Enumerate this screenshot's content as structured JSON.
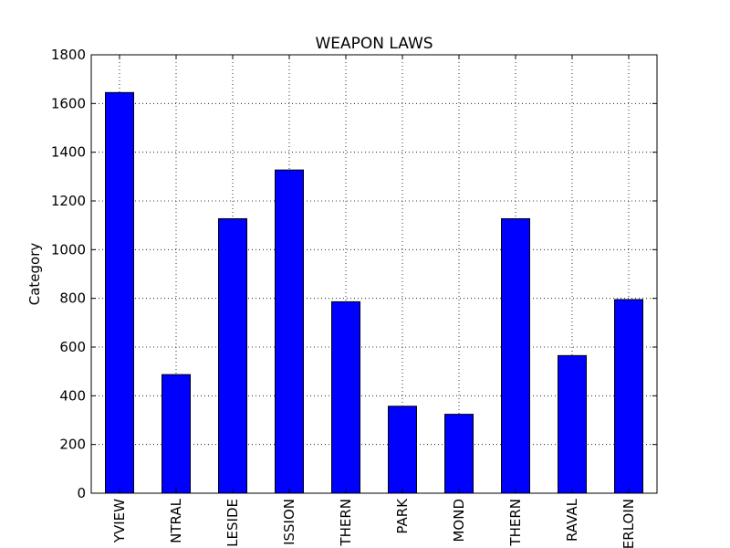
{
  "chart_data": {
    "type": "bar",
    "title": "WEAPON LAWS",
    "xlabel": "",
    "ylabel": "Category",
    "categories": [
      "BAYVIEW",
      "CENTRAL",
      "INGLESIDE",
      "MISSION",
      "NORTHERN",
      "PARK",
      "RICHMOND",
      "SOUTHERN",
      "TARAVAL",
      "TENDERLOIN"
    ],
    "tick_labels": [
      "YVIEW",
      "NTRAL",
      "LESIDE",
      "ISSION",
      "THERN",
      "PARK",
      "MOND",
      "THERN",
      "RAVAL",
      "ERLOIN"
    ],
    "values": [
      1645,
      487,
      1127,
      1327,
      786,
      357,
      324,
      1127,
      565,
      795
    ],
    "ylim": [
      0,
      1800
    ],
    "yticks": [
      0,
      200,
      400,
      600,
      800,
      1000,
      1200,
      1400,
      1600,
      1800
    ],
    "grid": true,
    "legend": "none",
    "colors": {
      "bar_fill": "#0000ff",
      "bar_edge": "#000000",
      "grid": "#000000",
      "axes": "#000000"
    }
  }
}
